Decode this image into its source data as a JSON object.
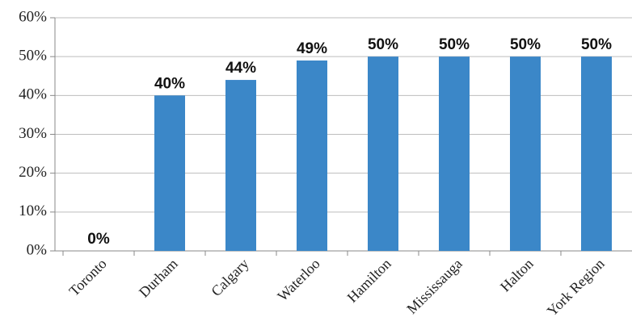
{
  "chart_data": {
    "type": "bar",
    "categories": [
      "Toronto",
      "Durham",
      "Calgary",
      "Waterloo",
      "Hamilton",
      "Mississauga",
      "Halton",
      "York Region"
    ],
    "values": [
      0,
      40,
      44,
      49,
      50,
      50,
      50,
      50
    ],
    "value_labels": [
      "0%",
      "40%",
      "44%",
      "49%",
      "50%",
      "50%",
      "50%",
      "50%"
    ],
    "color": "#3b87c8",
    "ylim": [
      0,
      60
    ],
    "yticks": [
      {
        "value": 0,
        "label": "0%"
      },
      {
        "value": 10,
        "label": "10%"
      },
      {
        "value": 20,
        "label": "20%"
      },
      {
        "value": 30,
        "label": "30%"
      },
      {
        "value": 40,
        "label": "40%"
      },
      {
        "value": 50,
        "label": "50%"
      },
      {
        "value": 60,
        "label": "60%"
      }
    ],
    "grid": true
  }
}
